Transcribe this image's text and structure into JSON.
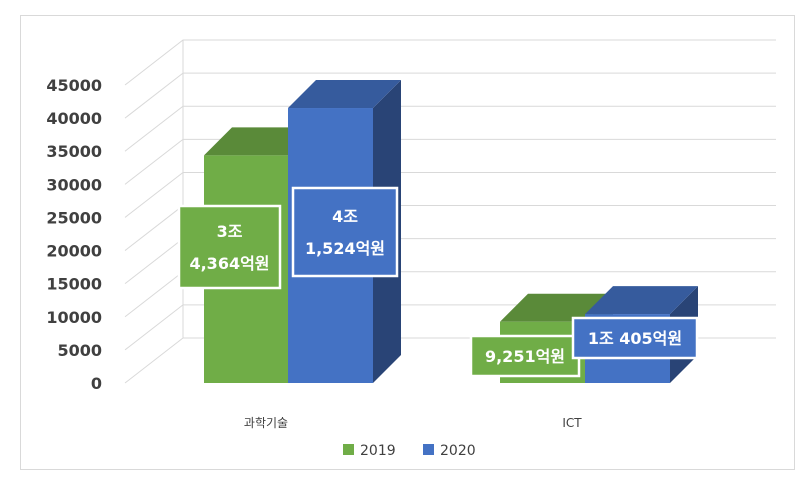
{
  "chart_data": {
    "type": "bar",
    "categories": [
      "과학기술",
      "ICT"
    ],
    "series": [
      {
        "name": "2019",
        "values": [
          34364,
          9251
        ],
        "labels": [
          [
            "3조",
            "4,364억원"
          ],
          [
            "9,251억원"
          ]
        ],
        "color": "#70ad47"
      },
      {
        "name": "2020",
        "values": [
          41524,
          10405
        ],
        "labels": [
          [
            "4조",
            "1,524억원"
          ],
          [
            "1조 405억원"
          ]
        ],
        "color": "#4472c4"
      }
    ],
    "yticks": [
      "0",
      "5000",
      "10000",
      "15000",
      "20000",
      "25000",
      "30000",
      "35000",
      "40000",
      "45000"
    ],
    "ylim": [
      0,
      45000
    ],
    "grid": true,
    "legend_position": "bottom"
  }
}
